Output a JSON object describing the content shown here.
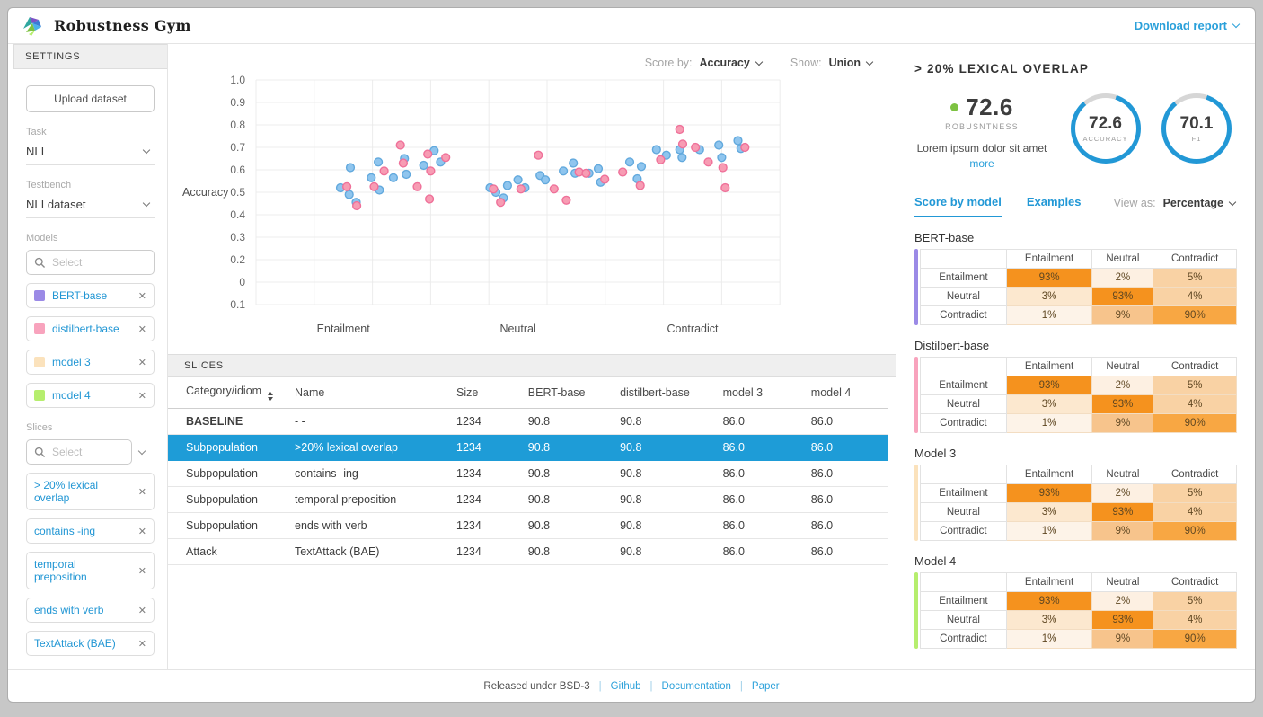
{
  "header": {
    "app_title": "Robustness Gym",
    "download_report": "Download report"
  },
  "sidebar": {
    "settings_title": "SETTINGS",
    "upload_button": "Upload dataset",
    "task_label": "Task",
    "task_value": "NLI",
    "testbench_label": "Testbench",
    "testbench_value": "NLI dataset",
    "models_label": "Models",
    "models_placeholder": "Select",
    "models": [
      {
        "label": "BERT-base",
        "color": "#9b8ae6"
      },
      {
        "label": "distilbert-base",
        "color": "#f8a3bd"
      },
      {
        "label": "model 3",
        "color": "#fbe2bc"
      },
      {
        "label": "model 4",
        "color": "#b6ee6e"
      }
    ],
    "slices_label": "Slices",
    "slices_placeholder": "Select",
    "slices": [
      "> 20% lexical overlap",
      "contains -ing",
      "temporal preposition",
      "ends with verb",
      "TextAttack (BAE)"
    ]
  },
  "chart_controls": {
    "score_by_label": "Score by:",
    "score_by_value": "Accuracy",
    "show_label": "Show:",
    "show_value": "Union"
  },
  "chart_data": {
    "type": "scatter",
    "ylabel": "Accuracy",
    "ylim": [
      0.1,
      1.0
    ],
    "grid": true,
    "y_tick_labels": [
      "1.0",
      "0.9",
      "0.8",
      "0.7",
      "0.6",
      "0.5",
      "0.4",
      "0.3",
      "0.2",
      "0",
      "0.1"
    ],
    "categories": [
      "Entailment",
      "Neutral",
      "Contradict"
    ],
    "x_units_per_category": 3,
    "series": [
      {
        "name": "BERT-base",
        "color": "#8fc5ee",
        "stroke": "#62a9dd",
        "points": [
          [
            1.45,
            0.52
          ],
          [
            1.62,
            0.61
          ],
          [
            1.6,
            0.49
          ],
          [
            1.72,
            0.455
          ],
          [
            1.98,
            0.565
          ],
          [
            2.1,
            0.635
          ],
          [
            2.12,
            0.51
          ],
          [
            2.36,
            0.565
          ],
          [
            2.55,
            0.65
          ],
          [
            2.58,
            0.58
          ],
          [
            2.88,
            0.62
          ],
          [
            3.06,
            0.685
          ],
          [
            3.17,
            0.635
          ],
          [
            4.02,
            0.52
          ],
          [
            4.12,
            0.5
          ],
          [
            4.25,
            0.475
          ],
          [
            4.32,
            0.53
          ],
          [
            4.5,
            0.555
          ],
          [
            4.62,
            0.52
          ],
          [
            4.88,
            0.575
          ],
          [
            4.97,
            0.555
          ],
          [
            5.28,
            0.595
          ],
          [
            5.45,
            0.63
          ],
          [
            5.48,
            0.585
          ],
          [
            5.72,
            0.585
          ],
          [
            5.88,
            0.605
          ],
          [
            5.92,
            0.545
          ],
          [
            6.42,
            0.635
          ],
          [
            6.55,
            0.56
          ],
          [
            6.62,
            0.615
          ],
          [
            6.88,
            0.69
          ],
          [
            7.05,
            0.665
          ],
          [
            7.28,
            0.69
          ],
          [
            7.32,
            0.655
          ],
          [
            7.62,
            0.69
          ],
          [
            7.95,
            0.71
          ],
          [
            8.0,
            0.655
          ],
          [
            8.28,
            0.73
          ],
          [
            8.33,
            0.695
          ]
        ]
      },
      {
        "name": "distilbert-base",
        "color": "#f79cb3",
        "stroke": "#ef7099",
        "points": [
          [
            1.56,
            0.525
          ],
          [
            1.73,
            0.44
          ],
          [
            2.03,
            0.525
          ],
          [
            2.2,
            0.595
          ],
          [
            2.48,
            0.71
          ],
          [
            2.53,
            0.63
          ],
          [
            2.77,
            0.525
          ],
          [
            2.95,
            0.67
          ],
          [
            3.0,
            0.595
          ],
          [
            2.98,
            0.47
          ],
          [
            3.26,
            0.655
          ],
          [
            4.08,
            0.515
          ],
          [
            4.2,
            0.455
          ],
          [
            4.55,
            0.515
          ],
          [
            4.85,
            0.665
          ],
          [
            5.12,
            0.515
          ],
          [
            5.33,
            0.465
          ],
          [
            5.55,
            0.59
          ],
          [
            5.67,
            0.585
          ],
          [
            5.99,
            0.558
          ],
          [
            6.3,
            0.59
          ],
          [
            6.6,
            0.53
          ],
          [
            6.95,
            0.645
          ],
          [
            7.28,
            0.78
          ],
          [
            7.33,
            0.715
          ],
          [
            7.55,
            0.7
          ],
          [
            7.77,
            0.635
          ],
          [
            8.02,
            0.61
          ],
          [
            8.06,
            0.52
          ],
          [
            8.4,
            0.7
          ]
        ]
      }
    ]
  },
  "slices_table": {
    "title": "SLICES",
    "columns": [
      "Category/idiom",
      "Name",
      "Size",
      "BERT-base",
      "distilbert-base",
      "model 3",
      "model 4"
    ],
    "rows": [
      {
        "category": "BASELINE",
        "name": "- -",
        "size": "1234",
        "values": [
          "90.8",
          "90.8",
          "86.0",
          "86.0"
        ],
        "bold": true,
        "selected": false
      },
      {
        "category": "Subpopulation",
        "name": ">20% lexical overlap",
        "size": "1234",
        "values": [
          "90.8",
          "90.8",
          "86.0",
          "86.0"
        ],
        "bold": false,
        "selected": true
      },
      {
        "category": "Subpopulation",
        "name": "contains -ing",
        "size": "1234",
        "values": [
          "90.8",
          "90.8",
          "86.0",
          "86.0"
        ],
        "bold": false,
        "selected": false
      },
      {
        "category": "Subpopulation",
        "name": "temporal preposition",
        "size": "1234",
        "values": [
          "90.8",
          "90.8",
          "86.0",
          "86.0"
        ],
        "bold": false,
        "selected": false
      },
      {
        "category": "Subpopulation",
        "name": "ends with verb",
        "size": "1234",
        "values": [
          "90.8",
          "90.8",
          "86.0",
          "86.0"
        ],
        "bold": false,
        "selected": false
      },
      {
        "category": "Attack",
        "name": "TextAttack (BAE)",
        "size": "1234",
        "values": [
          "90.8",
          "90.8",
          "86.0",
          "86.0"
        ],
        "bold": false,
        "selected": false
      }
    ]
  },
  "detail_panel": {
    "title": "> 20% LEXICAL OVERLAP",
    "robustness": {
      "value": "72.6",
      "label": "ROBUSNTNESS",
      "dot_color": "#7dc242",
      "description": "Lorem ipsum dolor sit amet",
      "more_link": "more"
    },
    "gauges": [
      {
        "value": "72.6",
        "label": "ACCURACY"
      },
      {
        "value": "70.1",
        "label": "F1"
      }
    ],
    "ring_color": "#2298d6",
    "tabs": [
      {
        "label": "Score by model",
        "active": true
      },
      {
        "label": "Examples",
        "active": false
      }
    ],
    "view_as_label": "View as:",
    "view_as_value": "Percentage",
    "matrix_axis_labels": [
      "Entailment",
      "Neutral",
      "Contradict"
    ],
    "matrices": [
      {
        "title": "BERT-base",
        "accent": "#9b8ae6",
        "rows": [
          [
            93,
            2,
            5
          ],
          [
            3,
            93,
            4
          ],
          [
            1,
            9,
            90
          ]
        ]
      },
      {
        "title": "Distilbert-base",
        "accent": "#f8a3bd",
        "rows": [
          [
            93,
            2,
            5
          ],
          [
            3,
            93,
            4
          ],
          [
            1,
            9,
            90
          ]
        ]
      },
      {
        "title": "Model 3",
        "accent": "#fbe2bc",
        "rows": [
          [
            93,
            2,
            5
          ],
          [
            3,
            93,
            4
          ],
          [
            1,
            9,
            90
          ]
        ]
      },
      {
        "title": "Model 4",
        "accent": "#b6ee6e",
        "rows": [
          [
            93,
            2,
            5
          ],
          [
            3,
            93,
            4
          ],
          [
            1,
            9,
            90
          ]
        ]
      }
    ],
    "cell_colors": {
      "93": "#f5921e",
      "90": "#f8a743",
      "9": "#f7c48c",
      "5": "#f9d2a4",
      "4": "#f9d2a4",
      "3": "#fce8cf",
      "2": "#fdf0e2",
      "1": "#fdf3e8"
    }
  },
  "footer": {
    "license": "Released under BSD-3",
    "links": [
      "Github",
      "Documentation",
      "Paper"
    ]
  }
}
